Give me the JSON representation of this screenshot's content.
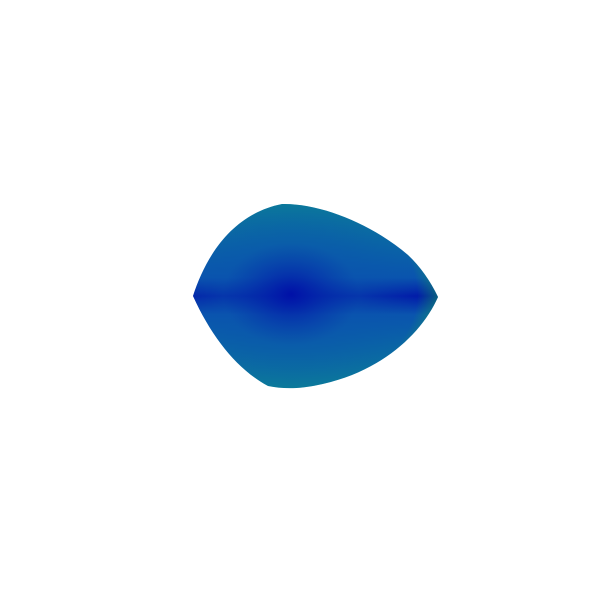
{
  "canvas": {
    "background": "#ffffff"
  },
  "shape": {
    "kind": "teardrop-blob",
    "colors": {
      "center": "#0010a8",
      "mid": "#0a54ae",
      "outer": "#0b8296",
      "rim": "#14a35a"
    }
  }
}
